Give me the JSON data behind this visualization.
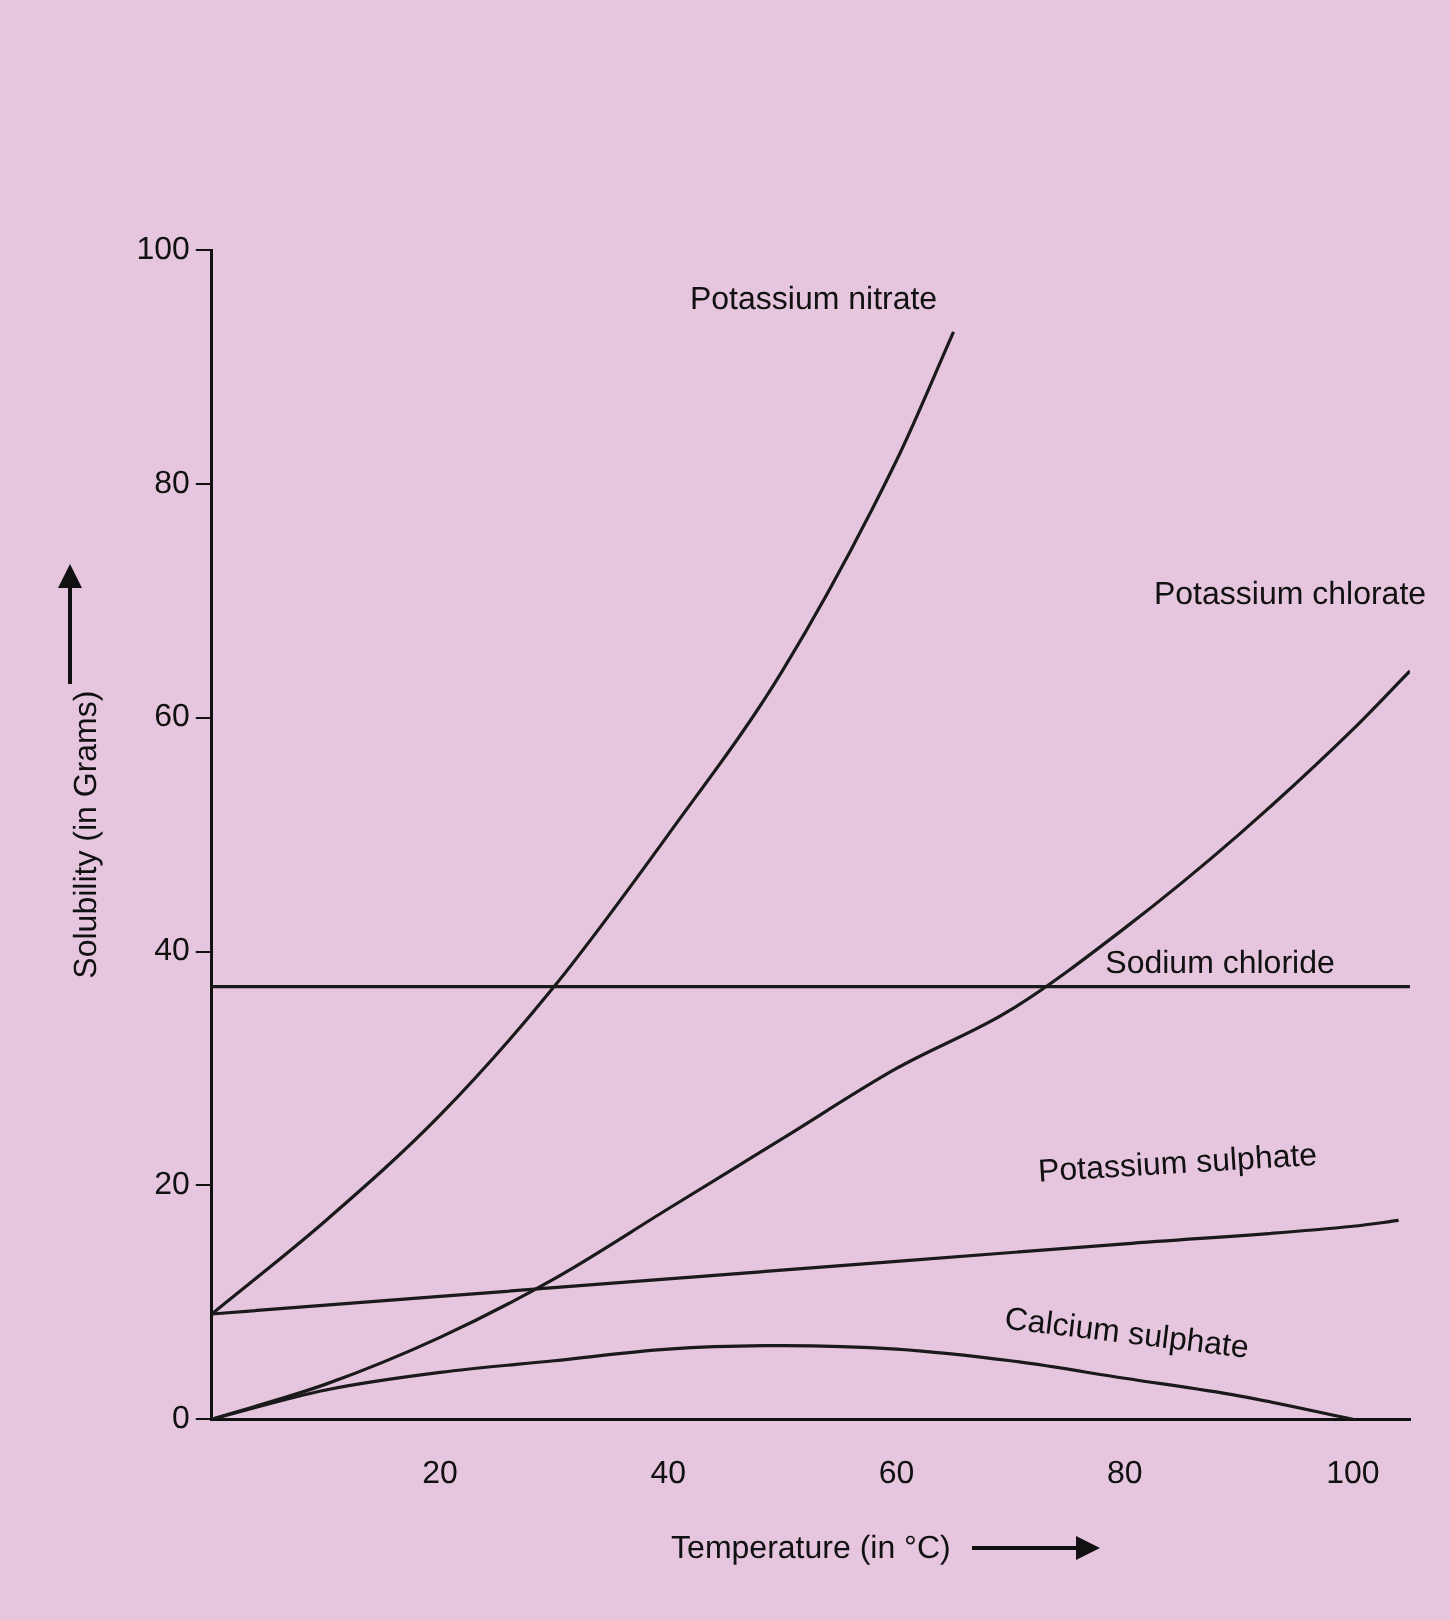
{
  "chart_data": {
    "type": "line",
    "xlabel": "Temperature (in °C)",
    "ylabel": "Solubility (in Grams)",
    "xlim": [
      0,
      105
    ],
    "xticks": [
      20,
      40,
      60,
      80,
      100
    ],
    "ylim": [
      0,
      100
    ],
    "yticks": [
      0,
      20,
      40,
      60,
      80,
      100
    ],
    "grid": false,
    "legend": false,
    "marker": "none",
    "line_style": "solid",
    "series": [
      {
        "name": "Potassium nitrate",
        "color": "#1a1a1a",
        "x": [
          0,
          10,
          20,
          30,
          40,
          50,
          60,
          65
        ],
        "values": [
          9,
          17,
          26,
          37,
          50,
          64,
          82,
          93
        ]
      },
      {
        "name": "Potassium chlorate",
        "color": "#1a1a1a",
        "x": [
          0,
          10,
          20,
          30,
          40,
          50,
          60,
          70,
          80,
          90,
          100,
          105
        ],
        "values": [
          0,
          3,
          7,
          12,
          18,
          24,
          30,
          35,
          42,
          50,
          59,
          64
        ]
      },
      {
        "name": "Sodium chloride",
        "color": "#1a1a1a",
        "x": [
          0,
          105
        ],
        "values": [
          37,
          37
        ]
      },
      {
        "name": "Potassium sulphate",
        "color": "#1a1a1a",
        "x": [
          0,
          20,
          40,
          60,
          80,
          100,
          104
        ],
        "values": [
          9,
          10.5,
          12,
          13.5,
          15,
          16.5,
          17
        ]
      },
      {
        "name": "Calcium sulphate",
        "color": "#1a1a1a",
        "x": [
          0,
          10,
          20,
          30,
          40,
          50,
          60,
          70,
          80,
          90,
          100
        ],
        "values": [
          0,
          2.5,
          4,
          5,
          6,
          6.3,
          6,
          5,
          3.5,
          2,
          0
        ]
      }
    ]
  }
}
